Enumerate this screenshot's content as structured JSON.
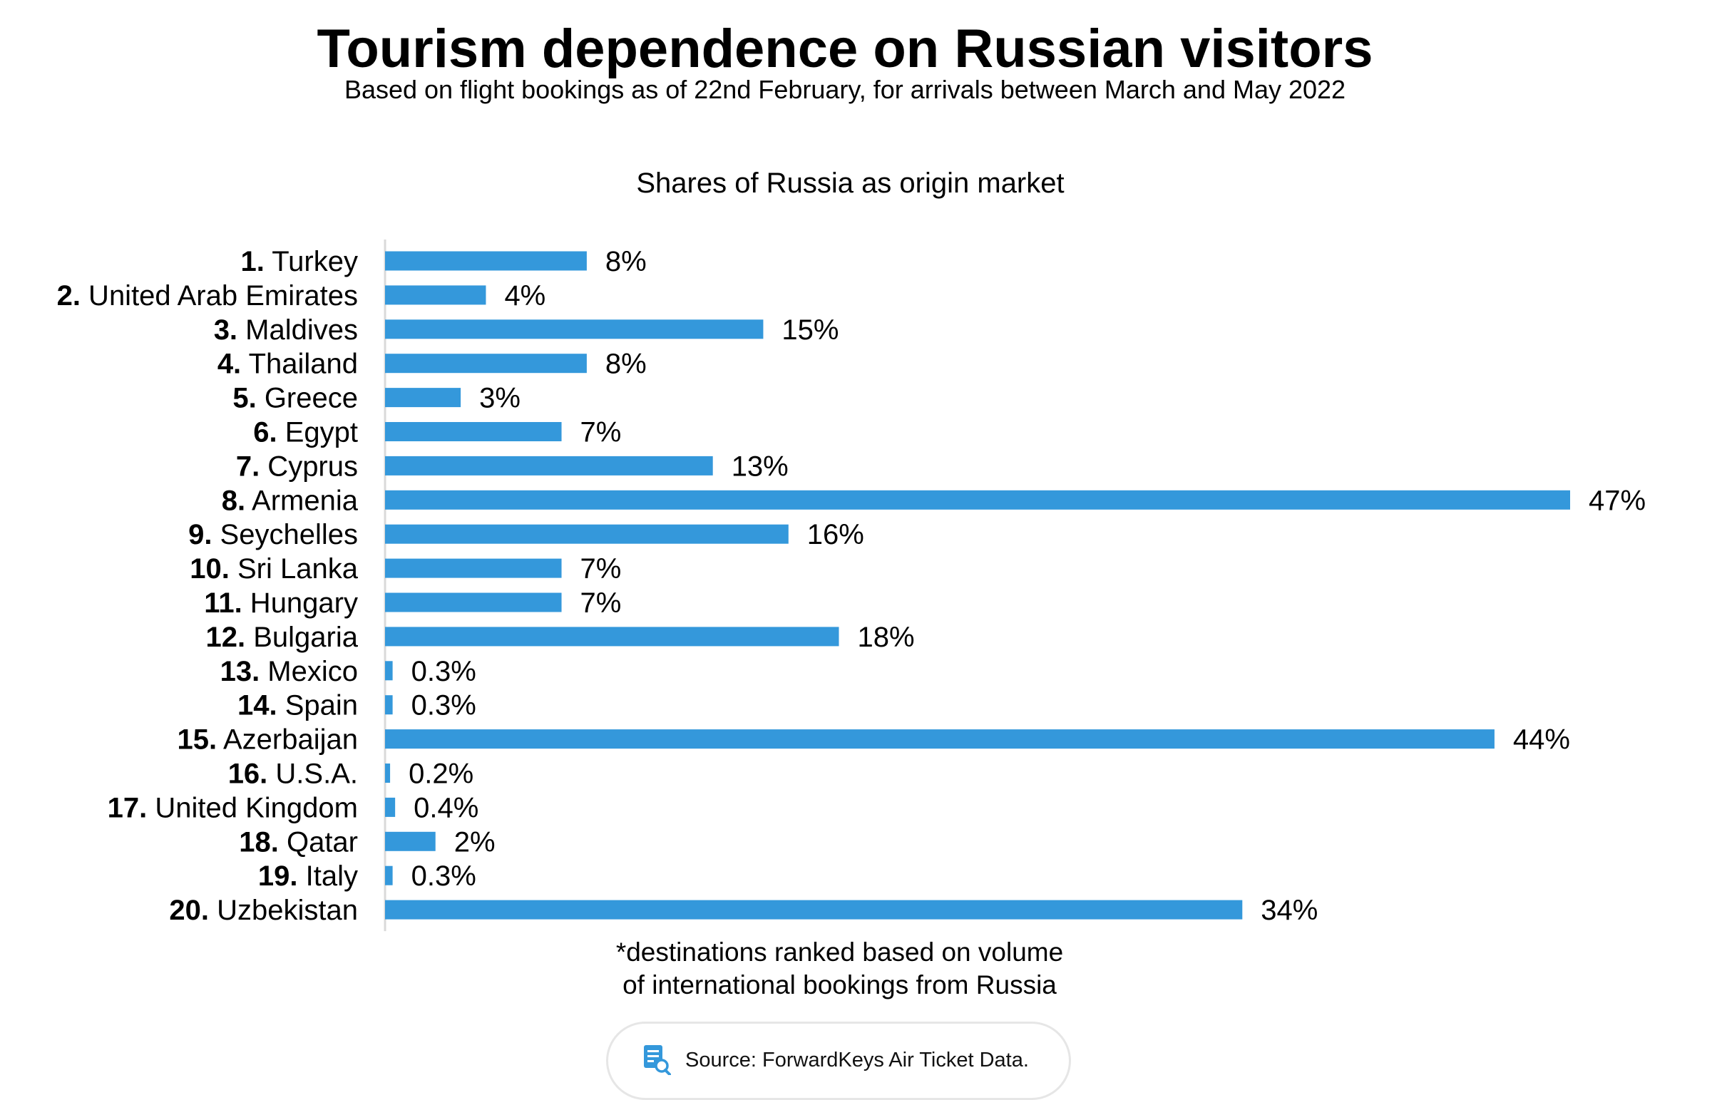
{
  "title": "Tourism dependence on Russian visitors",
  "subtitle": "Based on flight bookings as of 22nd February, for arrivals between March and May 2022",
  "chart_data": {
    "type": "bar",
    "orientation": "horizontal",
    "title": "Shares of Russia as origin market",
    "categories": [
      {
        "rank": "1.",
        "name": "Turkey"
      },
      {
        "rank": "2.",
        "name": "United Arab Emirates"
      },
      {
        "rank": "3.",
        "name": "Maldives"
      },
      {
        "rank": "4.",
        "name": "Thailand"
      },
      {
        "rank": "5.",
        "name": "Greece"
      },
      {
        "rank": "6.",
        "name": "Egypt"
      },
      {
        "rank": "7.",
        "name": "Cyprus"
      },
      {
        "rank": "8.",
        "name": "Armenia"
      },
      {
        "rank": "9.",
        "name": "Seychelles"
      },
      {
        "rank": "10.",
        "name": "Sri Lanka"
      },
      {
        "rank": "11.",
        "name": "Hungary"
      },
      {
        "rank": "12.",
        "name": "Bulgaria"
      },
      {
        "rank": "13.",
        "name": "Mexico"
      },
      {
        "rank": "14.",
        "name": "Spain"
      },
      {
        "rank": "15.",
        "name": "Azerbaijan"
      },
      {
        "rank": "16.",
        "name": "U.S.A."
      },
      {
        "rank": "17.",
        "name": "United Kingdom"
      },
      {
        "rank": "18.",
        "name": "Qatar"
      },
      {
        "rank": "19.",
        "name": "Italy"
      },
      {
        "rank": "20.",
        "name": "Uzbekistan"
      }
    ],
    "values": [
      8,
      4,
      15,
      8,
      3,
      7,
      13,
      47,
      16,
      7,
      7,
      18,
      0.3,
      0.3,
      44,
      0.2,
      0.4,
      2,
      0.3,
      34
    ],
    "value_labels": [
      "8%",
      "4%",
      "15%",
      "8%",
      "3%",
      "7%",
      "13%",
      "47%",
      "16%",
      "7%",
      "7%",
      "18%",
      "0.3%",
      "0.3%",
      "44%",
      "0.2%",
      "0.4%",
      "2%",
      "0.3%",
      "34%"
    ],
    "unit": "%",
    "xlim": [
      0,
      47
    ],
    "grid": false,
    "bar_color": "#3498db",
    "axis_color": "#d9d9d9"
  },
  "footnote": {
    "line1": "*destinations ranked based on volume",
    "line2": "of international bookings from Russia"
  },
  "source": {
    "icon": "document-search-icon",
    "text": "Source: ForwardKeys Air Ticket Data."
  }
}
